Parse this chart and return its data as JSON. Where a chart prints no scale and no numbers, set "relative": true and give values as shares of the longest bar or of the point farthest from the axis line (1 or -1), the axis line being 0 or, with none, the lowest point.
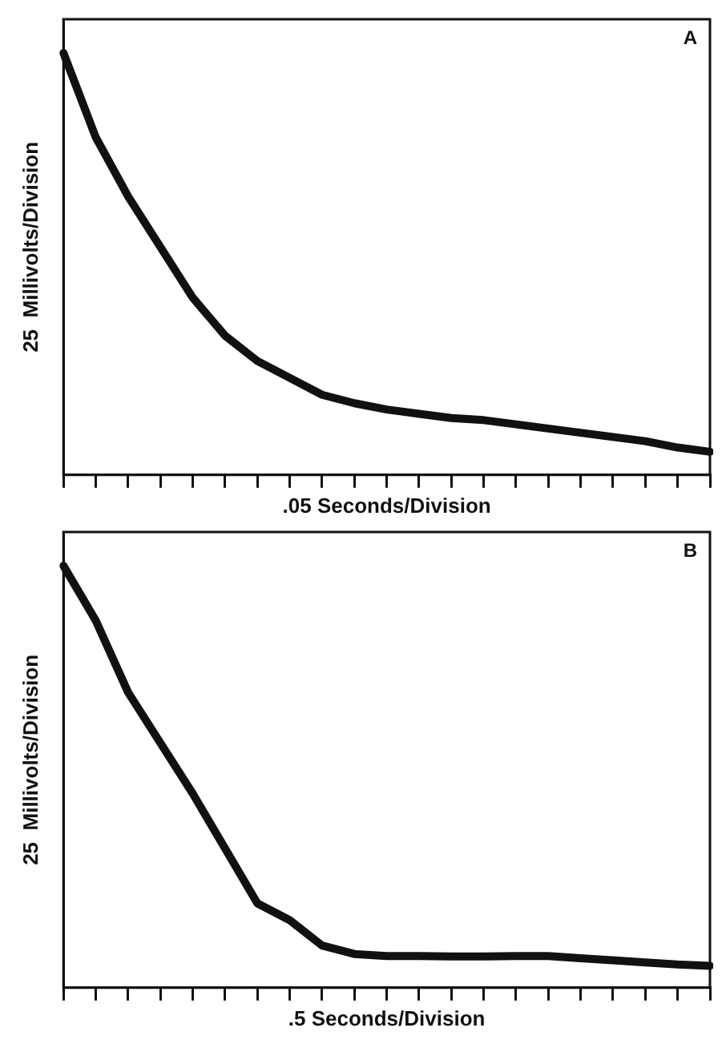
{
  "chart_data": [
    {
      "type": "line",
      "relative": true,
      "xlabel": ".05 Seconds/Division",
      "ylabel": "25  Millivolts/Division",
      "annotations": [
        "A"
      ],
      "marker": "none",
      "line_style": "solid",
      "categories": [
        null,
        null,
        null,
        null,
        null,
        null,
        null,
        null,
        null,
        null,
        null,
        null,
        null,
        null,
        null,
        null,
        null,
        null,
        null,
        null,
        null
      ],
      "series": [
        {
          "color": "#111111",
          "values": [
            1.0,
            0.8,
            0.66,
            0.54,
            0.42,
            0.33,
            0.27,
            0.23,
            0.19,
            0.17,
            0.155,
            0.145,
            0.135,
            0.13,
            0.12,
            0.11,
            0.1,
            0.09,
            0.08,
            0.065,
            0.055
          ]
        }
      ]
    },
    {
      "type": "line",
      "relative": true,
      "xlabel": ".5 Seconds/Division",
      "ylabel": "25  Millivolts/Division",
      "annotations": [
        "B"
      ],
      "marker": "none",
      "line_style": "solid",
      "categories": [
        null,
        null,
        null,
        null,
        null,
        null,
        null,
        null,
        null,
        null,
        null,
        null,
        null,
        null,
        null,
        null,
        null,
        null,
        null,
        null,
        null
      ],
      "series": [
        {
          "color": "#111111",
          "values": [
            1.0,
            0.87,
            0.7,
            0.58,
            0.46,
            0.33,
            0.2,
            0.16,
            0.1,
            0.08,
            0.075,
            0.075,
            0.074,
            0.074,
            0.075,
            0.075,
            0.07,
            0.065,
            0.06,
            0.055,
            0.052
          ]
        }
      ]
    }
  ]
}
